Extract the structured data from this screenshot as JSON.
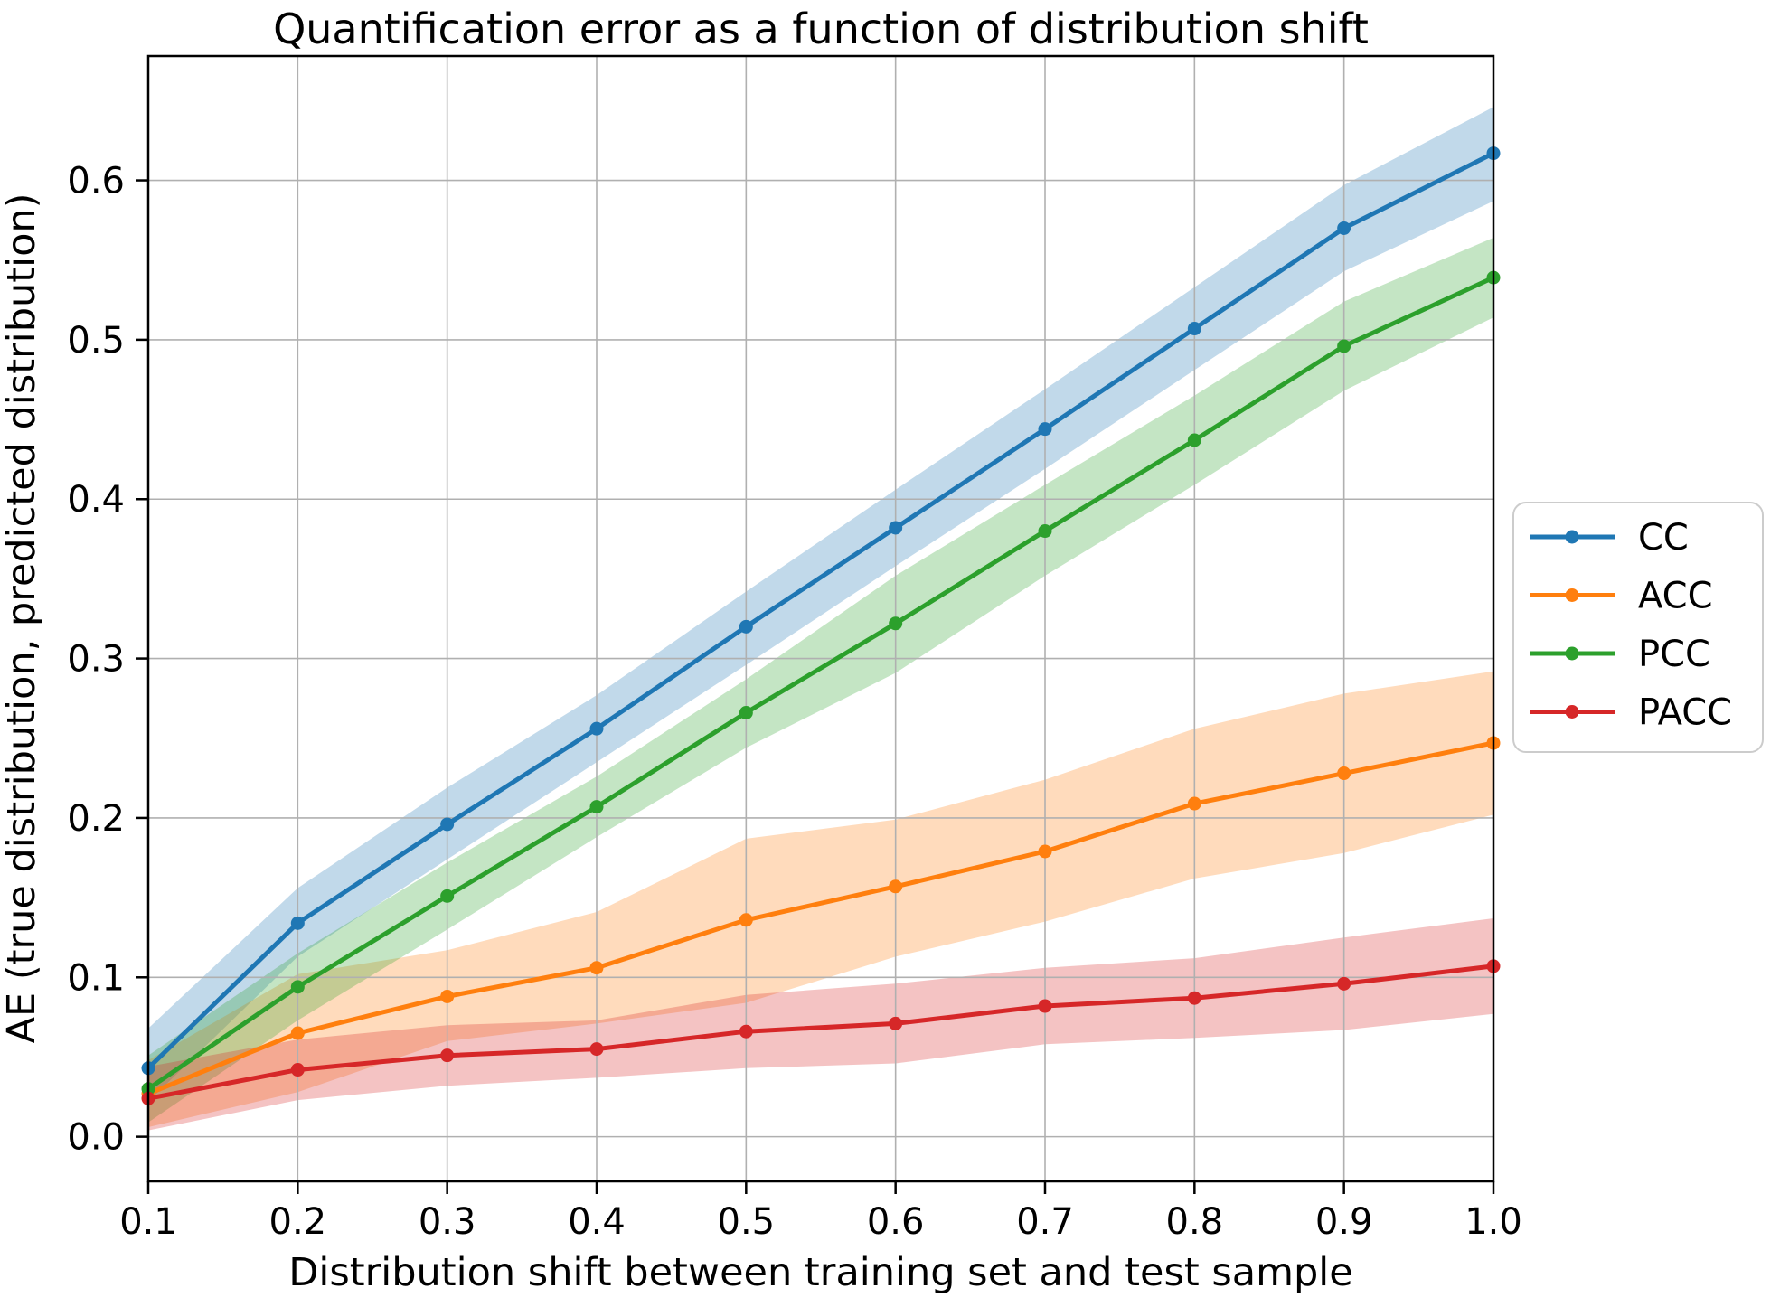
{
  "title": "Quantification error as a function of distribution shift",
  "x_axis": {
    "label": "Distribution shift between training set and test sample",
    "tick_labels": [
      "0.1",
      "0.2",
      "0.3",
      "0.4",
      "0.5",
      "0.6",
      "0.7",
      "0.8",
      "0.9",
      "1.0"
    ],
    "tick_values": [
      0.1,
      0.2,
      0.3,
      0.4,
      0.5,
      0.6,
      0.7,
      0.8,
      0.9,
      1.0
    ]
  },
  "y_axis": {
    "label": "AE (true distribution, predicted distribution)",
    "tick_labels": [
      "0.0",
      "0.1",
      "0.2",
      "0.3",
      "0.4",
      "0.5",
      "0.6"
    ],
    "tick_values": [
      0.0,
      0.1,
      0.2,
      0.3,
      0.4,
      0.5,
      0.6
    ]
  },
  "legend": {
    "entries": [
      "CC",
      "ACC",
      "PCC",
      "PACC"
    ],
    "position": "outside-right"
  },
  "style": {
    "grid_color": "#b0b0b0",
    "spine_color": "#000000",
    "background": "#ffffff",
    "legend_border_color": "#cccccc",
    "band_opacity": 0.28
  },
  "chart_data": {
    "type": "line",
    "title": "Quantification error as a function of distribution shift",
    "xlabel": "Distribution shift between training set and test sample",
    "ylabel": "AE (true distribution, predicted distribution)",
    "x": [
      0.1,
      0.2,
      0.3,
      0.4,
      0.5,
      0.6,
      0.7,
      0.8,
      0.9,
      1.0
    ],
    "xlim": [
      0.1,
      1.0
    ],
    "ylim": [
      -0.028,
      0.678
    ],
    "grid": true,
    "legend_position": "outside-right",
    "marker": "circle",
    "series": [
      {
        "name": "CC",
        "color": "#1f77b4",
        "values": [
          0.043,
          0.134,
          0.196,
          0.256,
          0.32,
          0.382,
          0.444,
          0.507,
          0.57,
          0.617
        ],
        "band_lower": [
          0.022,
          0.113,
          0.174,
          0.235,
          0.296,
          0.358,
          0.419,
          0.481,
          0.543,
          0.587
        ],
        "band_upper": [
          0.068,
          0.156,
          0.219,
          0.277,
          0.342,
          0.406,
          0.469,
          0.533,
          0.597,
          0.646
        ]
      },
      {
        "name": "ACC",
        "color": "#ff7f0e",
        "values": [
          0.027,
          0.065,
          0.088,
          0.106,
          0.136,
          0.157,
          0.179,
          0.209,
          0.228,
          0.247
        ],
        "band_lower": [
          0.006,
          0.028,
          0.06,
          0.071,
          0.084,
          0.113,
          0.135,
          0.162,
          0.178,
          0.202
        ],
        "band_upper": [
          0.048,
          0.102,
          0.117,
          0.141,
          0.187,
          0.199,
          0.224,
          0.256,
          0.278,
          0.292
        ]
      },
      {
        "name": "PCC",
        "color": "#2ca02c",
        "values": [
          0.03,
          0.094,
          0.151,
          0.207,
          0.266,
          0.322,
          0.38,
          0.437,
          0.496,
          0.539
        ],
        "band_lower": [
          0.009,
          0.073,
          0.13,
          0.188,
          0.244,
          0.291,
          0.352,
          0.409,
          0.468,
          0.514
        ],
        "band_upper": [
          0.051,
          0.115,
          0.172,
          0.226,
          0.287,
          0.352,
          0.409,
          0.465,
          0.524,
          0.564
        ]
      },
      {
        "name": "PACC",
        "color": "#d62728",
        "values": [
          0.024,
          0.042,
          0.051,
          0.055,
          0.066,
          0.071,
          0.082,
          0.087,
          0.096,
          0.107
        ],
        "band_lower": [
          0.004,
          0.023,
          0.032,
          0.037,
          0.043,
          0.046,
          0.058,
          0.062,
          0.067,
          0.077
        ],
        "band_upper": [
          0.044,
          0.061,
          0.07,
          0.073,
          0.089,
          0.096,
          0.106,
          0.112,
          0.125,
          0.137
        ]
      }
    ]
  }
}
